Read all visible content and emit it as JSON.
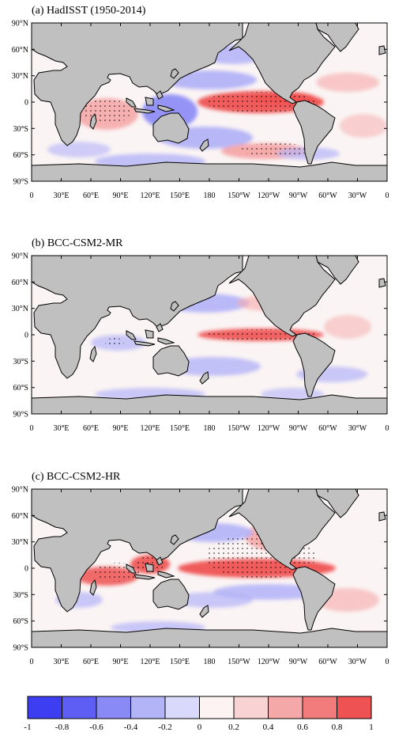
{
  "panels": [
    {
      "title": "(a) HadISST (1950-2014)",
      "lat_labels": [
        "90°N",
        "60°N",
        "30°N",
        "0",
        "30°S",
        "60°S",
        "90°S"
      ],
      "lon_labels": [
        "0",
        "30°E",
        "60°E",
        "90°E",
        "120°E",
        "150°E",
        "180",
        "150°W",
        "120°W",
        "90°W",
        "60°W",
        "30°W",
        "0"
      ]
    },
    {
      "title": "(b) BCC-CSM2-MR",
      "lat_labels": [
        "90°N",
        "60°N",
        "30°N",
        "0",
        "30°S",
        "60°S",
        "90°S"
      ],
      "lon_labels": [
        "0",
        "30°E",
        "60°E",
        "90°E",
        "120°E",
        "150°E",
        "180",
        "150°W",
        "120°W",
        "90°W",
        "60°W",
        "30°W",
        "0"
      ]
    },
    {
      "title": "(c) BCC-CSM2-HR",
      "lat_labels": [
        "90°N",
        "60°N",
        "30°N",
        "0",
        "30°S",
        "60°S",
        "90°S"
      ],
      "lon_labels": [
        "0",
        "30°E",
        "60°E",
        "90°E",
        "120°E",
        "150°E",
        "180",
        "150°W",
        "120°W",
        "90°W",
        "60°W",
        "30°W",
        "0"
      ]
    }
  ],
  "colorbar": {
    "tick_labels": [
      "-1",
      "-0.8",
      "-0.6",
      "-0.4",
      "-0.2",
      "0",
      "0.2",
      "0.4",
      "0.6",
      "0.8",
      "1"
    ],
    "bin_colors": [
      "#3d3df2",
      "#5e5ef4",
      "#8a8af6",
      "#b3b3f8",
      "#d9d9fb",
      "#fdf3f3",
      "#f9d3d3",
      "#f5a8a8",
      "#f27c7c",
      "#ef5252"
    ]
  },
  "colors": {
    "land": "#c0c0c0",
    "ocean_base": "#fbf4f4",
    "positive_strong": "#ef5252",
    "positive_mid": "#f5a8a8",
    "negative_mid": "#b3b3f8",
    "negative_strong": "#8a8af6"
  }
}
